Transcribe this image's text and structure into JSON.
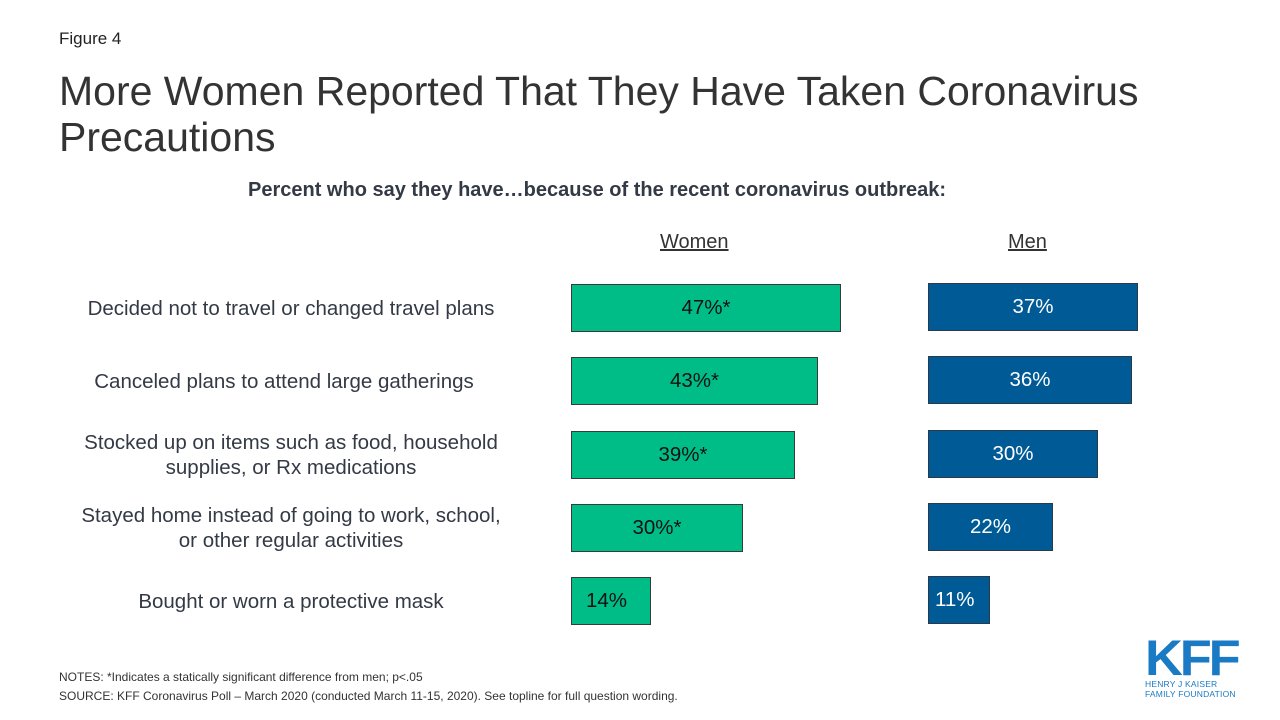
{
  "figure_label": "Figure 4",
  "title": "More Women Reported That They Have Taken Coronavirus Precautions",
  "chart_data": {
    "type": "bar",
    "orientation": "horizontal",
    "title": "More Women Reported That They Have Taken Coronavirus Precautions",
    "subtitle": "Percent who say they have…because of the recent coronavirus outbreak:",
    "categories": [
      "Decided not to travel or changed travel plans",
      "Canceled plans to attend large gatherings",
      "Stocked up on items such as food, household supplies, or Rx medications",
      "Stayed home instead of going to work, school, or other regular activities",
      "Bought or worn a protective mask"
    ],
    "series": [
      {
        "name": "Women",
        "color": "#00bd88",
        "values": [
          47,
          43,
          39,
          30,
          14
        ],
        "labels": [
          "47%*",
          "43%*",
          "39%*",
          "30%*",
          "14%"
        ]
      },
      {
        "name": "Men",
        "color": "#005a96",
        "values": [
          37,
          36,
          30,
          22,
          11
        ],
        "labels": [
          "37%",
          "36%",
          "30%",
          "22%",
          "11%"
        ]
      }
    ],
    "xlabel": "",
    "ylabel": "",
    "xlim": [
      0,
      100
    ],
    "grid": false,
    "legend": "column headers"
  },
  "labels": {
    "rows": [
      [
        "Decided not to travel or changed travel plans"
      ],
      [
        "Canceled plans to attend large gatherings"
      ],
      [
        "Stocked up on items such as food, household",
        "supplies, or Rx medications"
      ],
      [
        "Stayed home instead of going to work, school,",
        "or other regular activities"
      ],
      [
        "Bought or worn a protective mask"
      ]
    ]
  },
  "notes": "NOTES: *Indicates a statically significant difference from men; p<.05",
  "source": "SOURCE: KFF Coronavirus  Poll – March 2020 (conducted March 11-15, 2020). See topline for full question wording.",
  "logo": {
    "mark": "KFF",
    "line1": "HENRY J KAISER",
    "line2": "FAMILY FOUNDATION"
  }
}
